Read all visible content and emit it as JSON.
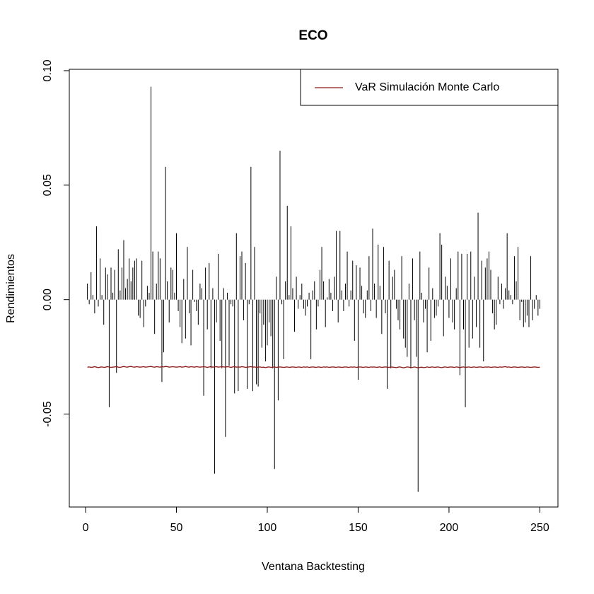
{
  "chart_data": {
    "type": "spike",
    "title": "ECO",
    "x_label": "Ventana Backtesting",
    "y_label": "Rendimientos",
    "xlim": [
      -8.96,
      259.96
    ],
    "ylim": [
      -0.0906,
      0.1006
    ],
    "xticks": [
      0,
      50,
      100,
      150,
      200,
      250
    ],
    "yticks": [
      {
        "value": -0.05,
        "label": "-0.05"
      },
      {
        "value": 0,
        "label": "0.00"
      },
      {
        "value": 0.05,
        "label": "0.05"
      },
      {
        "value": 0.1,
        "label": "0.10"
      }
    ],
    "legend": "topright",
    "x": [
      1,
      2,
      3,
      4,
      5,
      6,
      7,
      8,
      9,
      10,
      11,
      12,
      13,
      14,
      15,
      16,
      17,
      18,
      19,
      20,
      21,
      22,
      23,
      24,
      25,
      26,
      27,
      28,
      29,
      30,
      31,
      32,
      33,
      34,
      35,
      36,
      37,
      38,
      39,
      40,
      41,
      42,
      43,
      44,
      45,
      46,
      47,
      48,
      49,
      50,
      51,
      52,
      53,
      54,
      55,
      56,
      57,
      58,
      59,
      60,
      61,
      62,
      63,
      64,
      65,
      66,
      67,
      68,
      69,
      70,
      71,
      72,
      73,
      74,
      75,
      76,
      77,
      78,
      79,
      80,
      81,
      82,
      83,
      84,
      85,
      86,
      87,
      88,
      89,
      90,
      91,
      92,
      93,
      94,
      95,
      96,
      97,
      98,
      99,
      100,
      101,
      102,
      103,
      104,
      105,
      106,
      107,
      108,
      109,
      110,
      111,
      112,
      113,
      114,
      115,
      116,
      117,
      118,
      119,
      120,
      121,
      122,
      123,
      124,
      125,
      126,
      127,
      128,
      129,
      130,
      131,
      132,
      133,
      134,
      135,
      136,
      137,
      138,
      139,
      140,
      141,
      142,
      143,
      144,
      145,
      146,
      147,
      148,
      149,
      150,
      151,
      152,
      153,
      154,
      155,
      156,
      157,
      158,
      159,
      160,
      161,
      162,
      163,
      164,
      165,
      166,
      167,
      168,
      169,
      170,
      171,
      172,
      173,
      174,
      175,
      176,
      177,
      178,
      179,
      180,
      181,
      182,
      183,
      184,
      185,
      186,
      187,
      188,
      189,
      190,
      191,
      192,
      193,
      194,
      195,
      196,
      197,
      198,
      199,
      200,
      201,
      202,
      203,
      204,
      205,
      206,
      207,
      208,
      209,
      210,
      211,
      212,
      213,
      214,
      215,
      216,
      217,
      218,
      219,
      220,
      221,
      222,
      223,
      224,
      225,
      226,
      227,
      228,
      229,
      230,
      231,
      232,
      233,
      234,
      235,
      236,
      237,
      238,
      239,
      240,
      241,
      242,
      243,
      244,
      245,
      246,
      247,
      248,
      249,
      250
    ],
    "series": [
      {
        "name": "Rendimientos",
        "color": "#000000",
        "style": "spike",
        "values": [
          0.007,
          -0.002,
          0.012,
          0.002,
          -0.006,
          0.032,
          -0.003,
          0.018,
          0.002,
          -0.011,
          0.014,
          0.011,
          -0.047,
          0.014,
          0.003,
          0.013,
          -0.032,
          0.022,
          0.004,
          0.014,
          0.026,
          0.005,
          0.009,
          0.018,
          0.008,
          0.014,
          0.017,
          0.018,
          -0.007,
          -0.008,
          0.017,
          -0.012,
          -0.003,
          0.006,
          0.003,
          0.093,
          0.021,
          -0.015,
          0.007,
          0.021,
          0.018,
          -0.036,
          -0.023,
          0.058,
          0.008,
          -0.01,
          0.014,
          0.013,
          0.003,
          0.029,
          -0.005,
          -0.012,
          -0.019,
          0.009,
          -0.017,
          0.023,
          -0.006,
          -0.02,
          0.013,
          -0.001,
          -0.005,
          -0.011,
          0.007,
          0.005,
          -0.042,
          0.014,
          -0.013,
          0.016,
          -0.03,
          0.005,
          -0.076,
          -0.01,
          0.02,
          -0.018,
          -0.03,
          0.005,
          -0.06,
          0.003,
          -0.029,
          -0.002,
          -0.003,
          -0.041,
          0.029,
          -0.04,
          0.019,
          0.021,
          -0.009,
          0.016,
          -0.039,
          -0.002,
          0.058,
          -0.04,
          0.023,
          -0.037,
          -0.038,
          -0.006,
          -0.021,
          -0.011,
          -0.027,
          -0.02,
          -0.01,
          -0.016,
          -0.03,
          -0.074,
          0.01,
          -0.044,
          0.065,
          -0.002,
          -0.026,
          0.008,
          0.041,
          0.002,
          0.032,
          0.005,
          -0.014,
          0.01,
          -0.004,
          0.002,
          0.007,
          -0.004,
          -0.007,
          -0.003,
          0.003,
          -0.026,
          0.004,
          0.008,
          -0.013,
          -0.003,
          0.013,
          0.023,
          0.008,
          -0.012,
          0.001,
          0.009,
          0.003,
          -0.005,
          0.01,
          0.03,
          -0.01,
          0.03,
          0.004,
          -0.005,
          0.007,
          0.021,
          -0.003,
          0.004,
          0.017,
          -0.018,
          0.015,
          -0.035,
          0.014,
          0.006,
          -0.006,
          -0.008,
          0.004,
          0.019,
          -0.005,
          0.031,
          0.007,
          -0.008,
          0.024,
          0.006,
          -0.015,
          0.023,
          -0.006,
          -0.039,
          0.017,
          -0.03,
          0.01,
          0.013,
          -0.004,
          -0.009,
          -0.013,
          0.019,
          -0.017,
          -0.021,
          -0.025,
          0.007,
          -0.03,
          0.018,
          -0.009,
          -0.025,
          -0.084,
          0.021,
          0.003,
          -0.01,
          -0.004,
          -0.023,
          0.014,
          -0.018,
          0.005,
          -0.008,
          -0.007,
          -0.003,
          0.029,
          0.024,
          -0.016,
          0.01,
          0.006,
          -0.008,
          0.018,
          -0.01,
          -0.013,
          0.005,
          0.021,
          -0.033,
          0.02,
          -0.013,
          -0.047,
          0.02,
          -0.021,
          0.021,
          -0.017,
          0.01,
          -0.012,
          0.038,
          -0.021,
          0.017,
          -0.027,
          0.014,
          0.018,
          0.021,
          0.013,
          -0.006,
          -0.013,
          -0.011,
          0.01,
          -0.002,
          0.007,
          -0.004,
          0.005,
          0.029,
          0.004,
          0.002,
          -0.002,
          0.019,
          0.008,
          0.023,
          -0.009,
          -0.001,
          -0.012,
          -0.01,
          -0.007,
          -0.012,
          0.019,
          -0.009,
          -0.004,
          0.002,
          -0.007,
          -0.004
        ]
      },
      {
        "name": "VaR Simulación Monte Carlo",
        "color": "#8b1a1a",
        "style": "line",
        "values": [
          -0.0295,
          -0.0294,
          -0.0296,
          -0.0295,
          -0.0293,
          -0.0295,
          -0.0297,
          -0.0295,
          -0.0294,
          -0.0296,
          -0.0295,
          -0.0293,
          -0.0294,
          -0.0296,
          -0.0295,
          -0.0294,
          -0.0293,
          -0.0295,
          -0.0296,
          -0.0294,
          -0.0292,
          -0.0294,
          -0.0295,
          -0.0293,
          -0.0292,
          -0.0294,
          -0.0295,
          -0.0293,
          -0.0294,
          -0.0295,
          -0.0294,
          -0.0293,
          -0.0295,
          -0.0294,
          -0.0293,
          -0.0292,
          -0.0294,
          -0.0295,
          -0.0293,
          -0.0294,
          -0.0295,
          -0.0293,
          -0.0294,
          -0.0292,
          -0.0293,
          -0.0295,
          -0.0294,
          -0.0293,
          -0.0294,
          -0.0295,
          -0.0294,
          -0.0293,
          -0.0295,
          -0.0294,
          -0.0292,
          -0.0294,
          -0.0295,
          -0.0293,
          -0.0294,
          -0.0295,
          -0.0293,
          -0.0294,
          -0.0295,
          -0.0294,
          -0.0293,
          -0.0294,
          -0.0296,
          -0.0294,
          -0.0293,
          -0.0295,
          -0.0294,
          -0.0293,
          -0.0295,
          -0.0294,
          -0.0293,
          -0.0294,
          -0.0295,
          -0.0293,
          -0.0294,
          -0.0296,
          -0.0294,
          -0.0293,
          -0.0295,
          -0.0294,
          -0.0295,
          -0.0293,
          -0.0294,
          -0.0296,
          -0.0295,
          -0.0294,
          -0.0293,
          -0.0295,
          -0.0294,
          -0.0296,
          -0.0295,
          -0.0294,
          -0.0296,
          -0.0295,
          -0.0297,
          -0.0295,
          -0.0294,
          -0.0296,
          -0.0295,
          -0.0294,
          -0.0296,
          -0.0295,
          -0.0294,
          -0.0295,
          -0.0296,
          -0.0295,
          -0.0294,
          -0.0296,
          -0.0295,
          -0.0294,
          -0.0295,
          -0.0296,
          -0.0294,
          -0.0295,
          -0.0296,
          -0.0294,
          -0.0295,
          -0.0294,
          -0.0296,
          -0.0295,
          -0.0294,
          -0.0295,
          -0.0296,
          -0.0294,
          -0.0295,
          -0.0296,
          -0.0294,
          -0.0295,
          -0.0294,
          -0.0296,
          -0.0295,
          -0.0294,
          -0.0295,
          -0.0296,
          -0.0294,
          -0.0295,
          -0.0296,
          -0.0295,
          -0.0294,
          -0.0295,
          -0.0296,
          -0.0294,
          -0.0295,
          -0.0294,
          -0.0296,
          -0.0295,
          -0.0294,
          -0.0295,
          -0.0296,
          -0.0294,
          -0.0295,
          -0.0296,
          -0.0294,
          -0.0295,
          -0.0294,
          -0.0296,
          -0.0295,
          -0.0294,
          -0.0296,
          -0.0295,
          -0.0294,
          -0.0295,
          -0.0296,
          -0.0294,
          -0.0295,
          -0.0296,
          -0.0297,
          -0.0295,
          -0.0294,
          -0.0296,
          -0.0298,
          -0.0296,
          -0.0294,
          -0.0295,
          -0.0297,
          -0.0296,
          -0.0294,
          -0.0296,
          -0.0298,
          -0.0296,
          -0.0295,
          -0.0297,
          -0.0296,
          -0.0294,
          -0.0296,
          -0.0295,
          -0.0294,
          -0.0296,
          -0.0295,
          -0.0294,
          -0.0296,
          -0.0297,
          -0.0295,
          -0.0294,
          -0.0296,
          -0.0295,
          -0.0294,
          -0.0295,
          -0.0296,
          -0.0294,
          -0.0295,
          -0.0297,
          -0.0295,
          -0.0294,
          -0.0296,
          -0.0295,
          -0.0294,
          -0.0296,
          -0.0295,
          -0.0294,
          -0.0296,
          -0.0295,
          -0.0294,
          -0.0295,
          -0.0296,
          -0.0294,
          -0.0295,
          -0.0294,
          -0.0296,
          -0.0295,
          -0.0294,
          -0.0295,
          -0.0296,
          -0.0294,
          -0.0295,
          -0.0294,
          -0.0293,
          -0.0295,
          -0.0294,
          -0.0296,
          -0.0295,
          -0.0294,
          -0.0295,
          -0.0296,
          -0.0295,
          -0.0294,
          -0.0295,
          -0.0296,
          -0.0294,
          -0.0295,
          -0.0296,
          -0.0295,
          -0.0294,
          -0.0295,
          -0.0296,
          -0.0295
        ]
      }
    ]
  }
}
